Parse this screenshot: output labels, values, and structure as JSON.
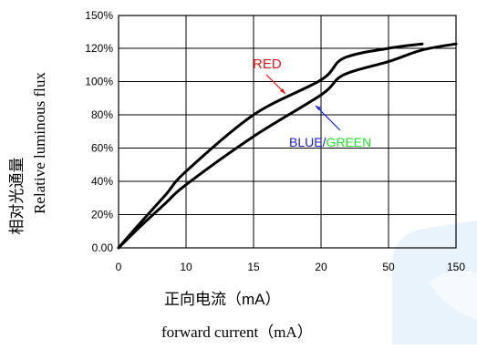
{
  "chart_data": {
    "type": "line",
    "title": "",
    "xlabel_cn": "正向电流（mA）",
    "xlabel_en": "forward current（mA）",
    "ylabel_cn": "相对光通量",
    "ylabel_en": "Relative luminous flux",
    "x_ticks": [
      "0",
      "10",
      "15",
      "20",
      "50",
      "150"
    ],
    "y_ticks": [
      "0.00",
      "20%",
      "40%",
      "60%",
      "80%",
      "100%",
      "120%",
      "150%"
    ],
    "grid": true,
    "series": [
      {
        "name": "RED",
        "color": "#000000",
        "x": [
          0,
          3,
          7,
          10,
          15,
          20,
          30,
          50,
          100
        ],
        "y": [
          0,
          14,
          32,
          46,
          80,
          101,
          114,
          120,
          124
        ]
      },
      {
        "name": "BLUE/GREEN",
        "color": "#000000",
        "x": [
          0,
          3,
          7,
          10,
          15,
          20,
          30,
          50,
          100,
          150
        ],
        "y": [
          0,
          12,
          27,
          38,
          67,
          92,
          104,
          112,
          119,
          124
        ]
      }
    ],
    "annotations": [
      {
        "text": "RED",
        "color": "#e8141b"
      },
      {
        "text_part1": "BLUE/",
        "color1": "#1a1adb",
        "text_part2": "GREEN",
        "color2": "#22e02a"
      }
    ]
  },
  "colors": {
    "watermark": "#e6f1fa"
  }
}
